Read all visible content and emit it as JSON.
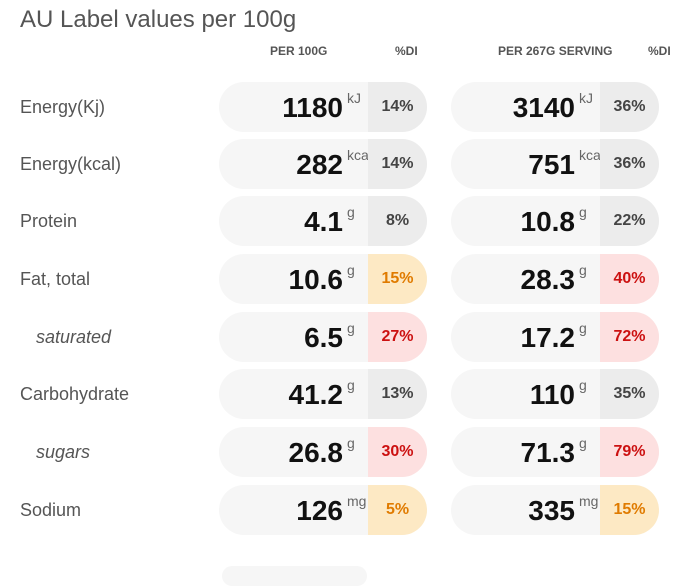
{
  "title": "AU Label values per 100g",
  "headers": {
    "per100": "PER 100G",
    "di1": "%DI",
    "serving": "PER 267G SERVING",
    "di2": "%DI"
  },
  "colors": {
    "grey": "#ececec",
    "orange": "#fde9c4",
    "red": "#fde0e0"
  },
  "rows": [
    {
      "label": "Energy(Kj)",
      "sub": false,
      "v1": "1180",
      "u1": "kJ",
      "d1": "14%",
      "c1": "grey",
      "v2": "3140",
      "u2": "kJ",
      "d2": "36%",
      "c2": "grey"
    },
    {
      "label": "Energy(kcal)",
      "sub": false,
      "v1": "282",
      "u1": "kcal",
      "d1": "14%",
      "c1": "grey",
      "v2": "751",
      "u2": "kcal",
      "d2": "36%",
      "c2": "grey"
    },
    {
      "label": "Protein",
      "sub": false,
      "v1": "4.1",
      "u1": "g",
      "d1": "8%",
      "c1": "grey",
      "v2": "10.8",
      "u2": "g",
      "d2": "22%",
      "c2": "grey"
    },
    {
      "label": "Fat, total",
      "sub": false,
      "v1": "10.6",
      "u1": "g",
      "d1": "15%",
      "c1": "orange",
      "v2": "28.3",
      "u2": "g",
      "d2": "40%",
      "c2": "red"
    },
    {
      "label": "saturated",
      "sub": true,
      "v1": "6.5",
      "u1": "g",
      "d1": "27%",
      "c1": "red",
      "v2": "17.2",
      "u2": "g",
      "d2": "72%",
      "c2": "red"
    },
    {
      "label": "Carbohydrate",
      "sub": false,
      "v1": "41.2",
      "u1": "g",
      "d1": "13%",
      "c1": "grey",
      "v2": "110",
      "u2": "g",
      "d2": "35%",
      "c2": "grey"
    },
    {
      "label": "sugars",
      "sub": true,
      "v1": "26.8",
      "u1": "g",
      "d1": "30%",
      "c1": "red",
      "v2": "71.3",
      "u2": "g",
      "d2": "79%",
      "c2": "red"
    },
    {
      "label": "Sodium",
      "sub": false,
      "v1": "126",
      "u1": "mg",
      "d1": "5%",
      "c1": "orange",
      "v2": "335",
      "u2": "mg",
      "d2": "15%",
      "c2": "orange"
    }
  ]
}
